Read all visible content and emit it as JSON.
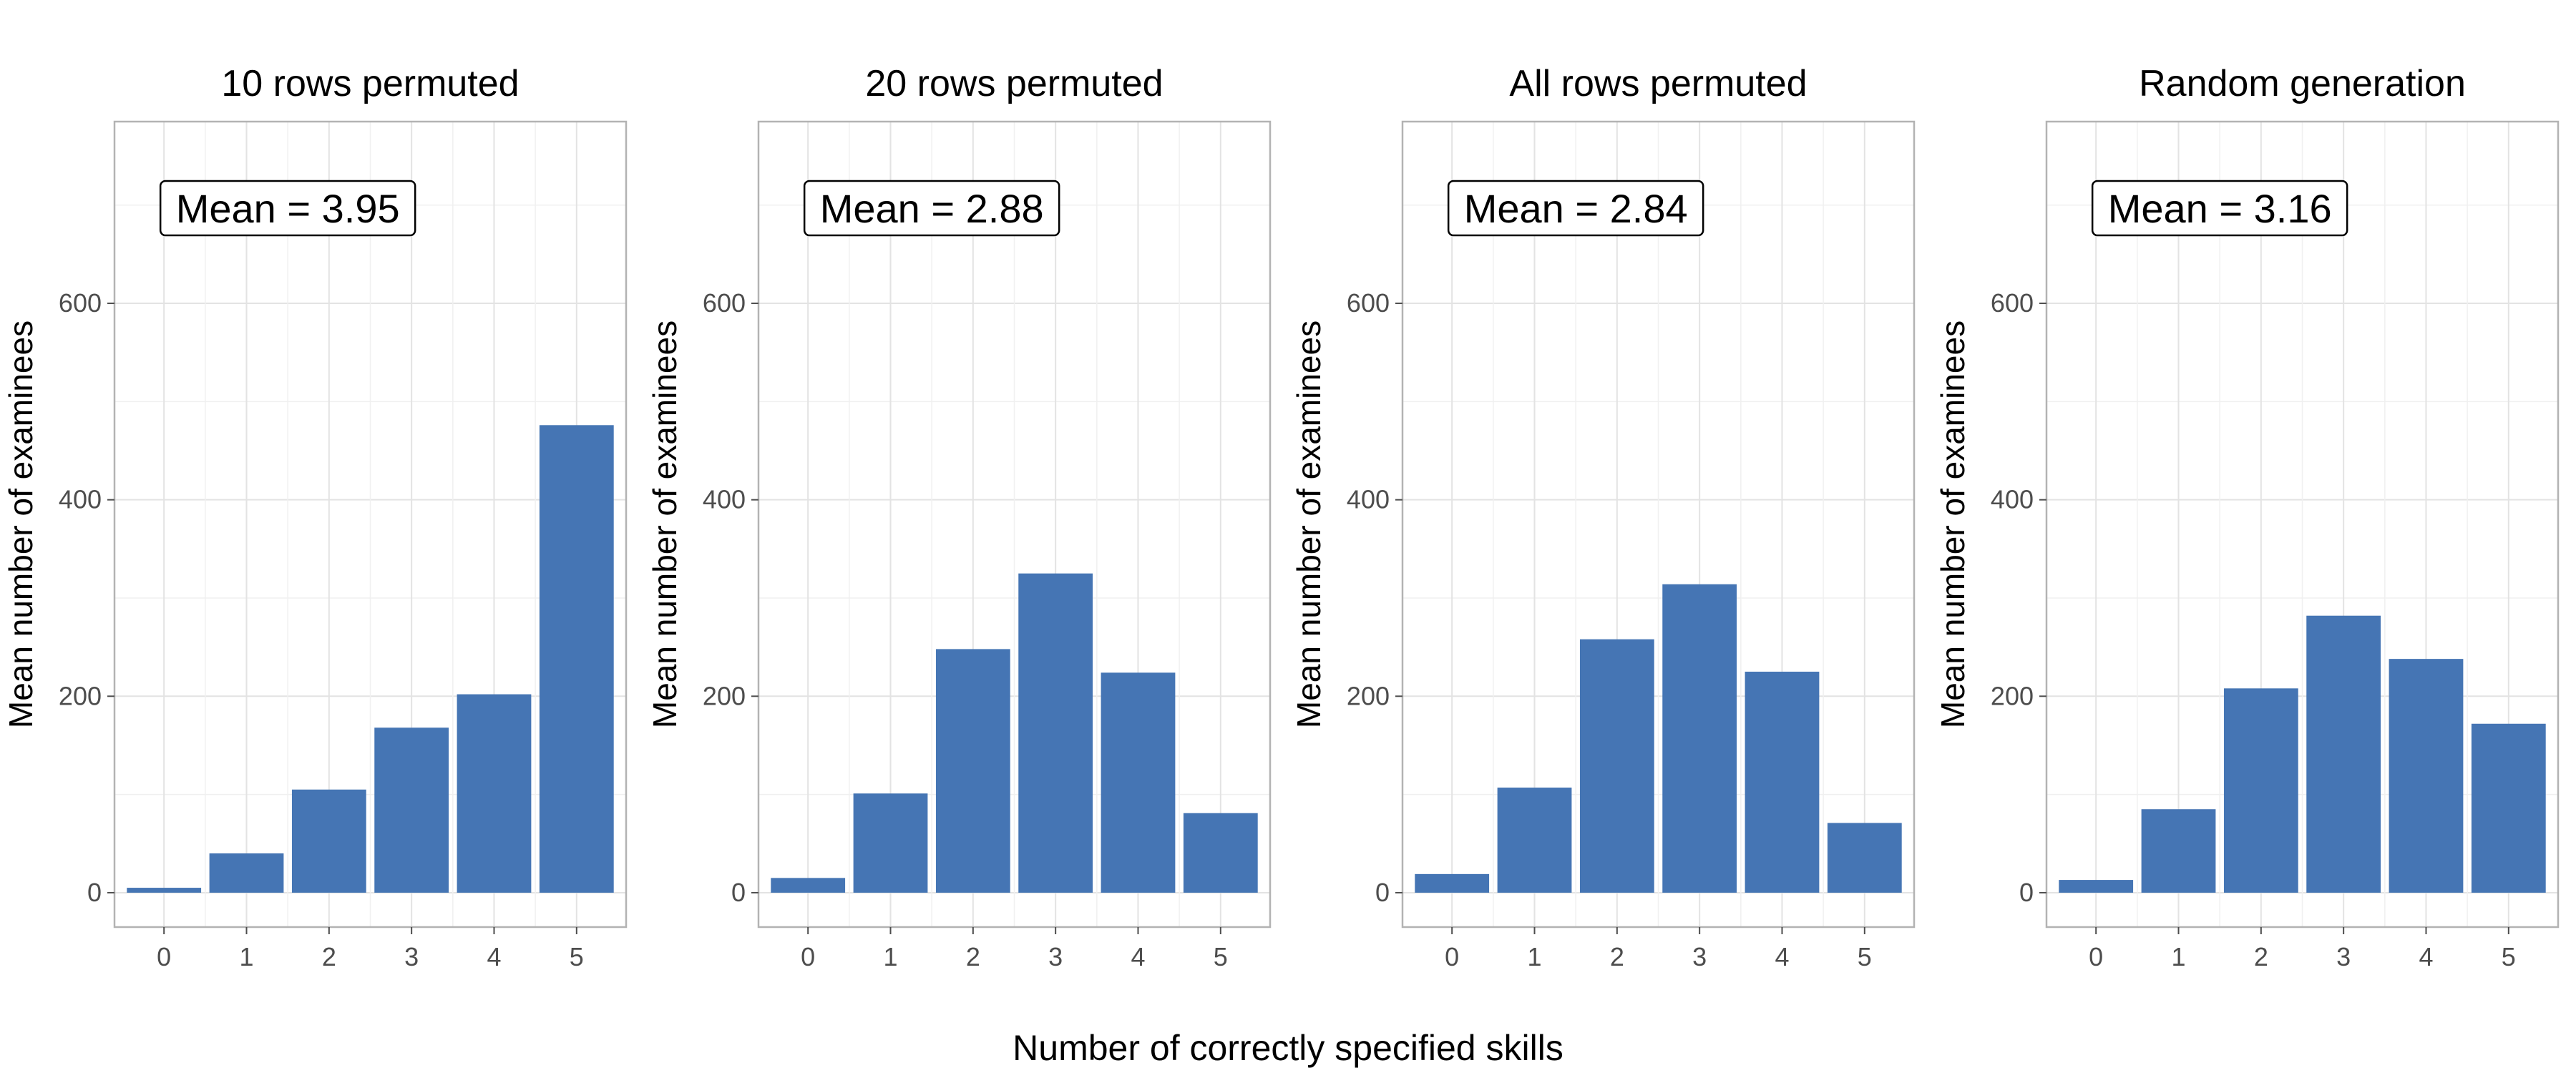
{
  "chart_data": [
    {
      "type": "bar",
      "title": "10 rows permuted",
      "ylabel": "Mean number of examinees",
      "xlabel": "",
      "categories": [
        "0",
        "1",
        "2",
        "3",
        "4",
        "5"
      ],
      "values": [
        5,
        40,
        105,
        168,
        202,
        476
      ],
      "annotation": "Mean = 3.95",
      "ylim": [
        -35,
        785
      ],
      "yticks": [
        0,
        200,
        400,
        600
      ],
      "ytick_labels": [
        "0",
        "200",
        "400",
        "600"
      ],
      "grid": true,
      "color": "#4575b4"
    },
    {
      "type": "bar",
      "title": "20 rows permuted",
      "ylabel": "Mean number of examinees",
      "xlabel": "",
      "categories": [
        "0",
        "1",
        "2",
        "3",
        "4",
        "5"
      ],
      "values": [
        15,
        101,
        248,
        325,
        224,
        81
      ],
      "annotation": "Mean = 2.88",
      "ylim": [
        -35,
        785
      ],
      "yticks": [
        0,
        200,
        400,
        600
      ],
      "ytick_labels": [
        "0",
        "200",
        "400",
        "600"
      ],
      "grid": true,
      "color": "#4575b4"
    },
    {
      "type": "bar",
      "title": "All rows permuted",
      "ylabel": "Mean number of examinees",
      "xlabel": "",
      "categories": [
        "0",
        "1",
        "2",
        "3",
        "4",
        "5"
      ],
      "values": [
        19,
        107,
        258,
        314,
        225,
        71
      ],
      "annotation": "Mean = 2.84",
      "ylim": [
        -35,
        785
      ],
      "yticks": [
        0,
        200,
        400,
        600
      ],
      "ytick_labels": [
        "0",
        "200",
        "400",
        "600"
      ],
      "grid": true,
      "color": "#4575b4"
    },
    {
      "type": "bar",
      "title": "Random generation",
      "ylabel": "Mean number of examinees",
      "xlabel": "",
      "categories": [
        "0",
        "1",
        "2",
        "3",
        "4",
        "5"
      ],
      "values": [
        13,
        85,
        208,
        282,
        238,
        172
      ],
      "annotation": "Mean = 3.16",
      "ylim": [
        -35,
        785
      ],
      "yticks": [
        0,
        200,
        400,
        600
      ],
      "ytick_labels": [
        "0",
        "200",
        "400",
        "600"
      ],
      "grid": true,
      "color": "#4575b4"
    }
  ],
  "shared_xlabel": "Number of correctly specified skills"
}
